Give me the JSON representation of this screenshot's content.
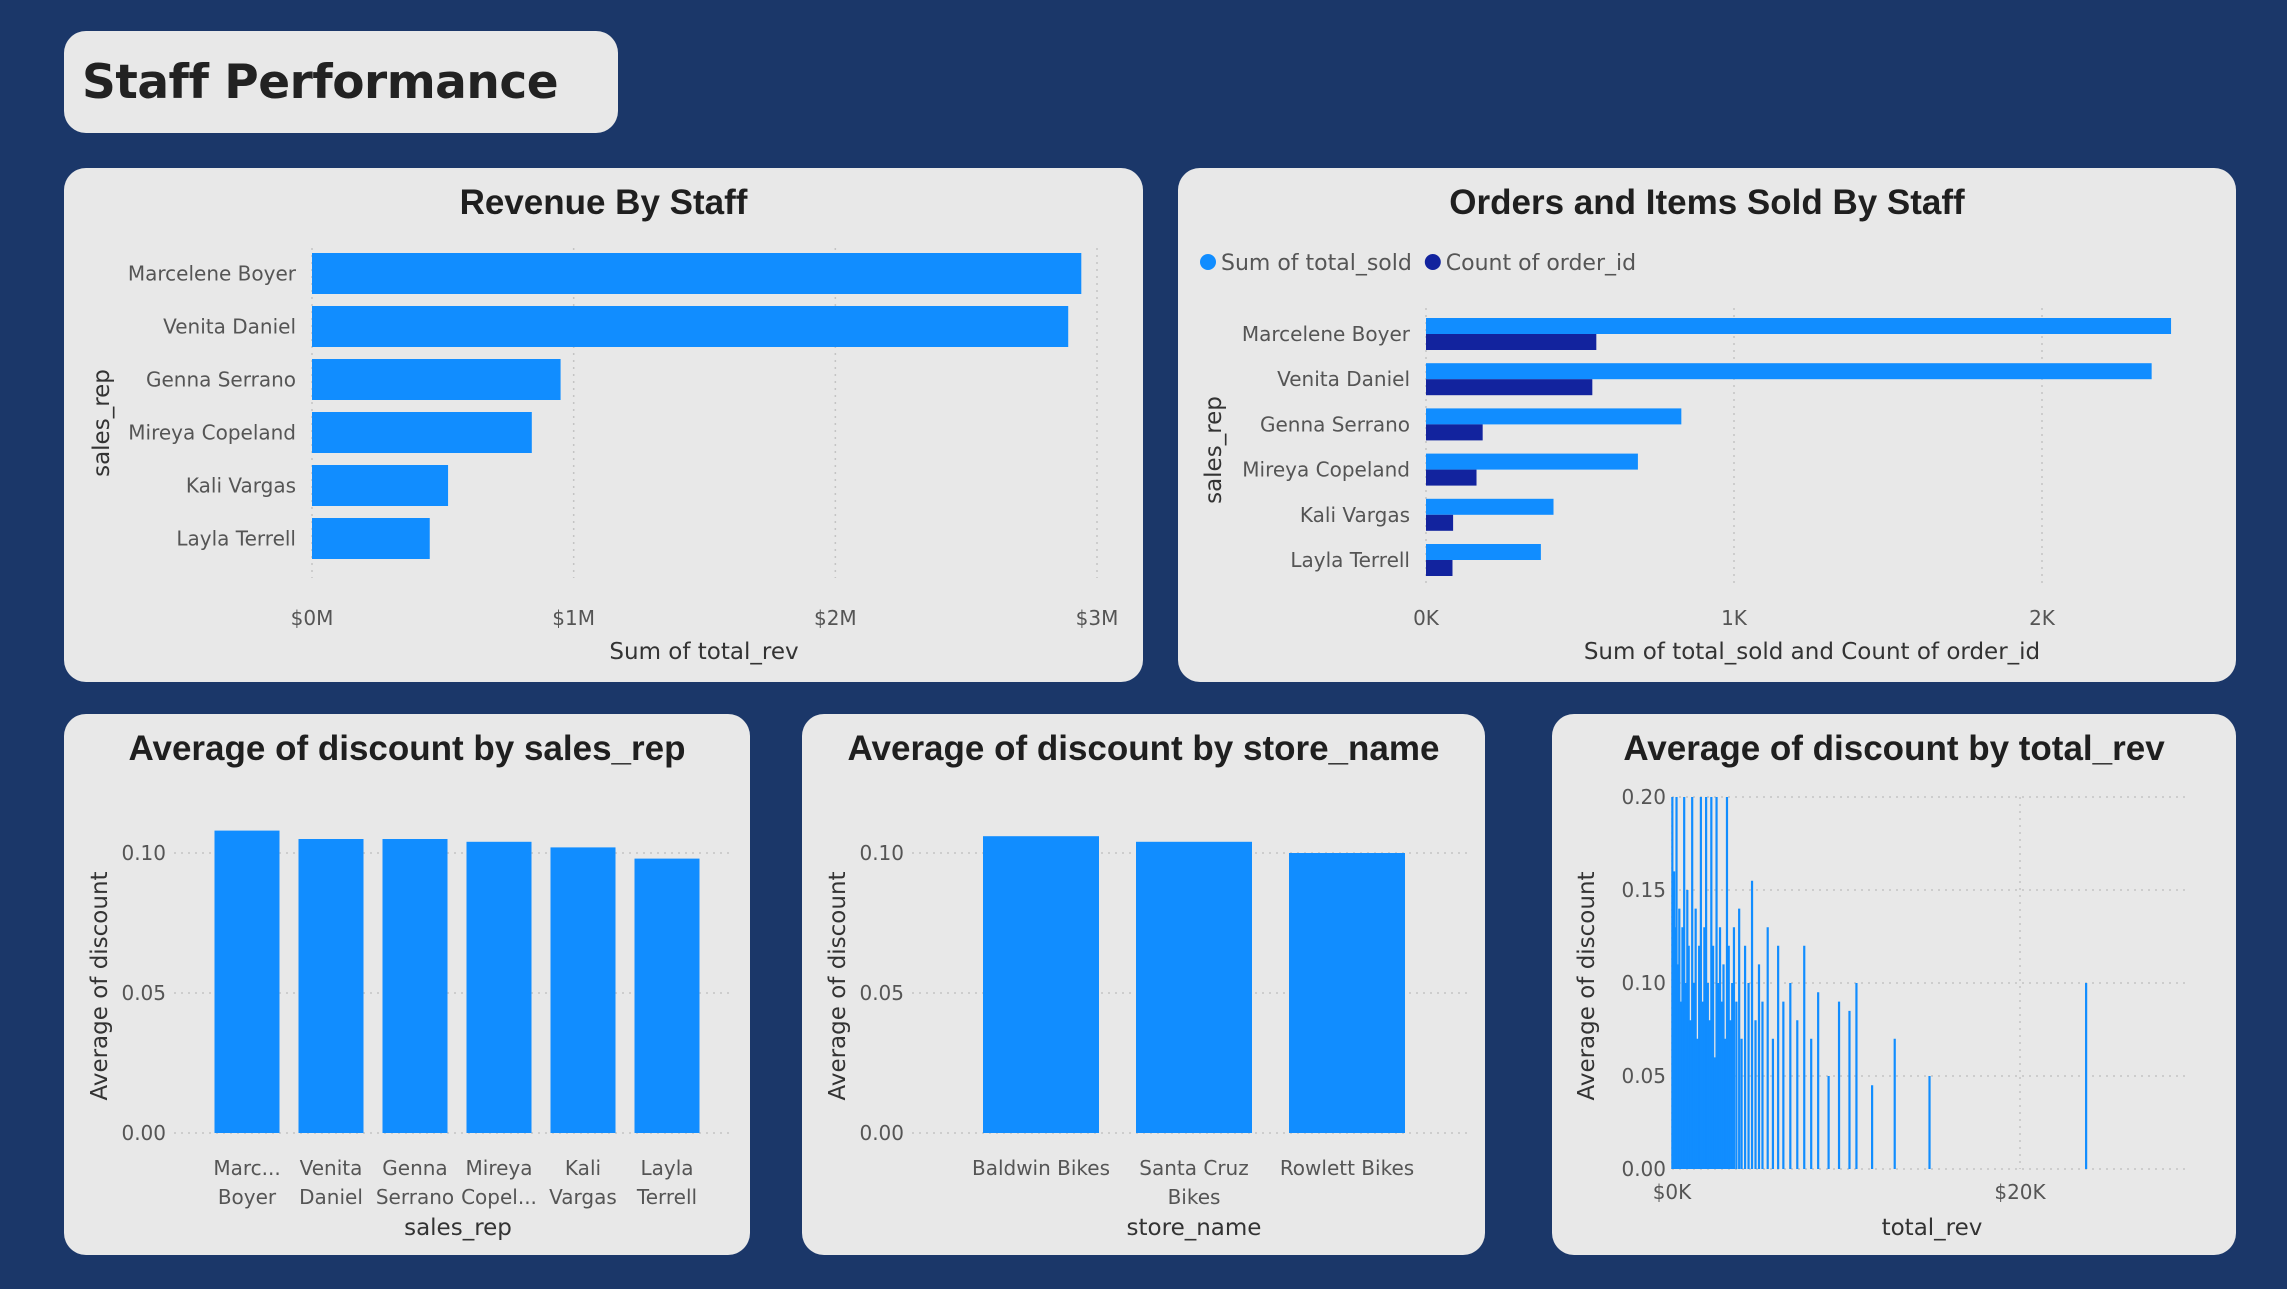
{
  "page": {
    "title": "Staff Performance"
  },
  "colors": {
    "background": "#1b3769",
    "card": "#e8e8e8",
    "accent": "#118dff",
    "accent_dark": "#12239e"
  },
  "chart_data": [
    {
      "id": "revenue_by_staff",
      "type": "bar",
      "orientation": "horizontal",
      "title": "Revenue By Staff",
      "xlabel": "Sum of total_rev",
      "ylabel": "sales_rep",
      "categories": [
        "Marcelene Boyer",
        "Venita Daniel",
        "Genna Serrano",
        "Mireya Copeland",
        "Kali Vargas",
        "Layla Terrell"
      ],
      "values": [
        2940000,
        2890000,
        950000,
        840000,
        520000,
        450000
      ],
      "xlim": [
        0,
        3000000
      ],
      "ticks": [
        0,
        1000000,
        2000000,
        3000000
      ],
      "tick_labels": [
        "$0M",
        "$1M",
        "$2M",
        "$3M"
      ],
      "grid": true
    },
    {
      "id": "orders_items_by_staff",
      "type": "bar",
      "orientation": "horizontal",
      "title": "Orders and Items Sold By Staff",
      "xlabel": "Sum of total_sold and Count of order_id",
      "ylabel": "sales_rep",
      "categories": [
        "Marcelene Boyer",
        "Venita Daniel",
        "Genna Serrano",
        "Mireya Copeland",
        "Kali Vargas",
        "Layla Terrell"
      ],
      "series": [
        {
          "name": "Sum of total_sold",
          "color": "#118dff",
          "values": [
            2419,
            2356,
            829,
            688,
            414,
            373
          ]
        },
        {
          "name": "Count of order_id",
          "color": "#12239e",
          "values": [
            553,
            540,
            184,
            164,
            88,
            86
          ]
        }
      ],
      "legend": "top-left",
      "xlim": [
        0,
        2500
      ],
      "ticks": [
        0,
        1000,
        2000
      ],
      "tick_labels": [
        "0K",
        "1K",
        "2K"
      ],
      "grid": true
    },
    {
      "id": "discount_by_sales_rep",
      "type": "bar",
      "title": "Average of discount by sales_rep",
      "xlabel": "sales_rep",
      "ylabel": "Average of discount",
      "categories": [
        [
          "Marc...",
          "Boyer"
        ],
        [
          "Venita",
          "Daniel"
        ],
        [
          "Genna",
          "Serrano"
        ],
        [
          "Mireya",
          "Copel..."
        ],
        [
          "Kali",
          "Vargas"
        ],
        [
          "Layla",
          "Terrell"
        ]
      ],
      "values": [
        0.108,
        0.105,
        0.105,
        0.104,
        0.102,
        0.098
      ],
      "ylim": [
        0,
        0.12
      ],
      "ticks": [
        0,
        0.05,
        0.1
      ],
      "tick_labels": [
        "0.00",
        "0.05",
        "0.10"
      ],
      "grid": true
    },
    {
      "id": "discount_by_store",
      "type": "bar",
      "title": "Average of discount by store_name",
      "xlabel": "store_name",
      "ylabel": "Average of discount",
      "categories": [
        [
          "Baldwin Bikes"
        ],
        [
          "Santa Cruz",
          "Bikes"
        ],
        [
          "Rowlett Bikes"
        ]
      ],
      "values": [
        0.106,
        0.104,
        0.1
      ],
      "ylim": [
        0,
        0.12
      ],
      "ticks": [
        0,
        0.05,
        0.1
      ],
      "tick_labels": [
        "0.00",
        "0.05",
        "0.10"
      ],
      "grid": true
    },
    {
      "id": "discount_by_total_rev",
      "type": "area",
      "title": "Average of discount by total_rev",
      "xlabel": "total_rev",
      "ylabel": "Average of discount",
      "xlim": [
        0,
        29000
      ],
      "ylim": [
        0,
        0.2
      ],
      "xticks": [
        0,
        20000
      ],
      "xtick_labels": [
        "$0K",
        "$20K"
      ],
      "yticks": [
        0,
        0.05,
        0.1,
        0.15,
        0.2
      ],
      "ytick_labels": [
        "0.00",
        "0.05",
        "0.10",
        "0.15",
        "0.20"
      ],
      "x": [
        20,
        120,
        180,
        260,
        340,
        420,
        520,
        600,
        700,
        780,
        880,
        960,
        1060,
        1160,
        1260,
        1360,
        1460,
        1560,
        1660,
        1760,
        1860,
        1960,
        2060,
        2160,
        2260,
        2360,
        2460,
        2560,
        2660,
        2760,
        2860,
        2960,
        3060,
        3160,
        3260,
        3360,
        3460,
        3560,
        3700,
        3860,
        4000,
        4200,
        4400,
        4600,
        4800,
        5000,
        5200,
        5500,
        5800,
        6100,
        6400,
        6800,
        7200,
        7600,
        8000,
        8400,
        9000,
        9600,
        10200,
        10600,
        11500,
        12800,
        14800,
        23800
      ],
      "values": [
        0.2,
        0.16,
        0.13,
        0.2,
        0.11,
        0.14,
        0.09,
        0.13,
        0.2,
        0.1,
        0.15,
        0.12,
        0.08,
        0.2,
        0.1,
        0.14,
        0.07,
        0.12,
        0.2,
        0.09,
        0.13,
        0.2,
        0.1,
        0.08,
        0.2,
        0.12,
        0.06,
        0.2,
        0.1,
        0.13,
        0.09,
        0.11,
        0.07,
        0.2,
        0.12,
        0.08,
        0.1,
        0.13,
        0.09,
        0.14,
        0.07,
        0.12,
        0.1,
        0.155,
        0.08,
        0.11,
        0.09,
        0.13,
        0.07,
        0.12,
        0.09,
        0.1,
        0.08,
        0.12,
        0.07,
        0.095,
        0.05,
        0.09,
        0.085,
        0.1,
        0.045,
        0.07,
        0.05,
        0.1
      ]
    }
  ]
}
